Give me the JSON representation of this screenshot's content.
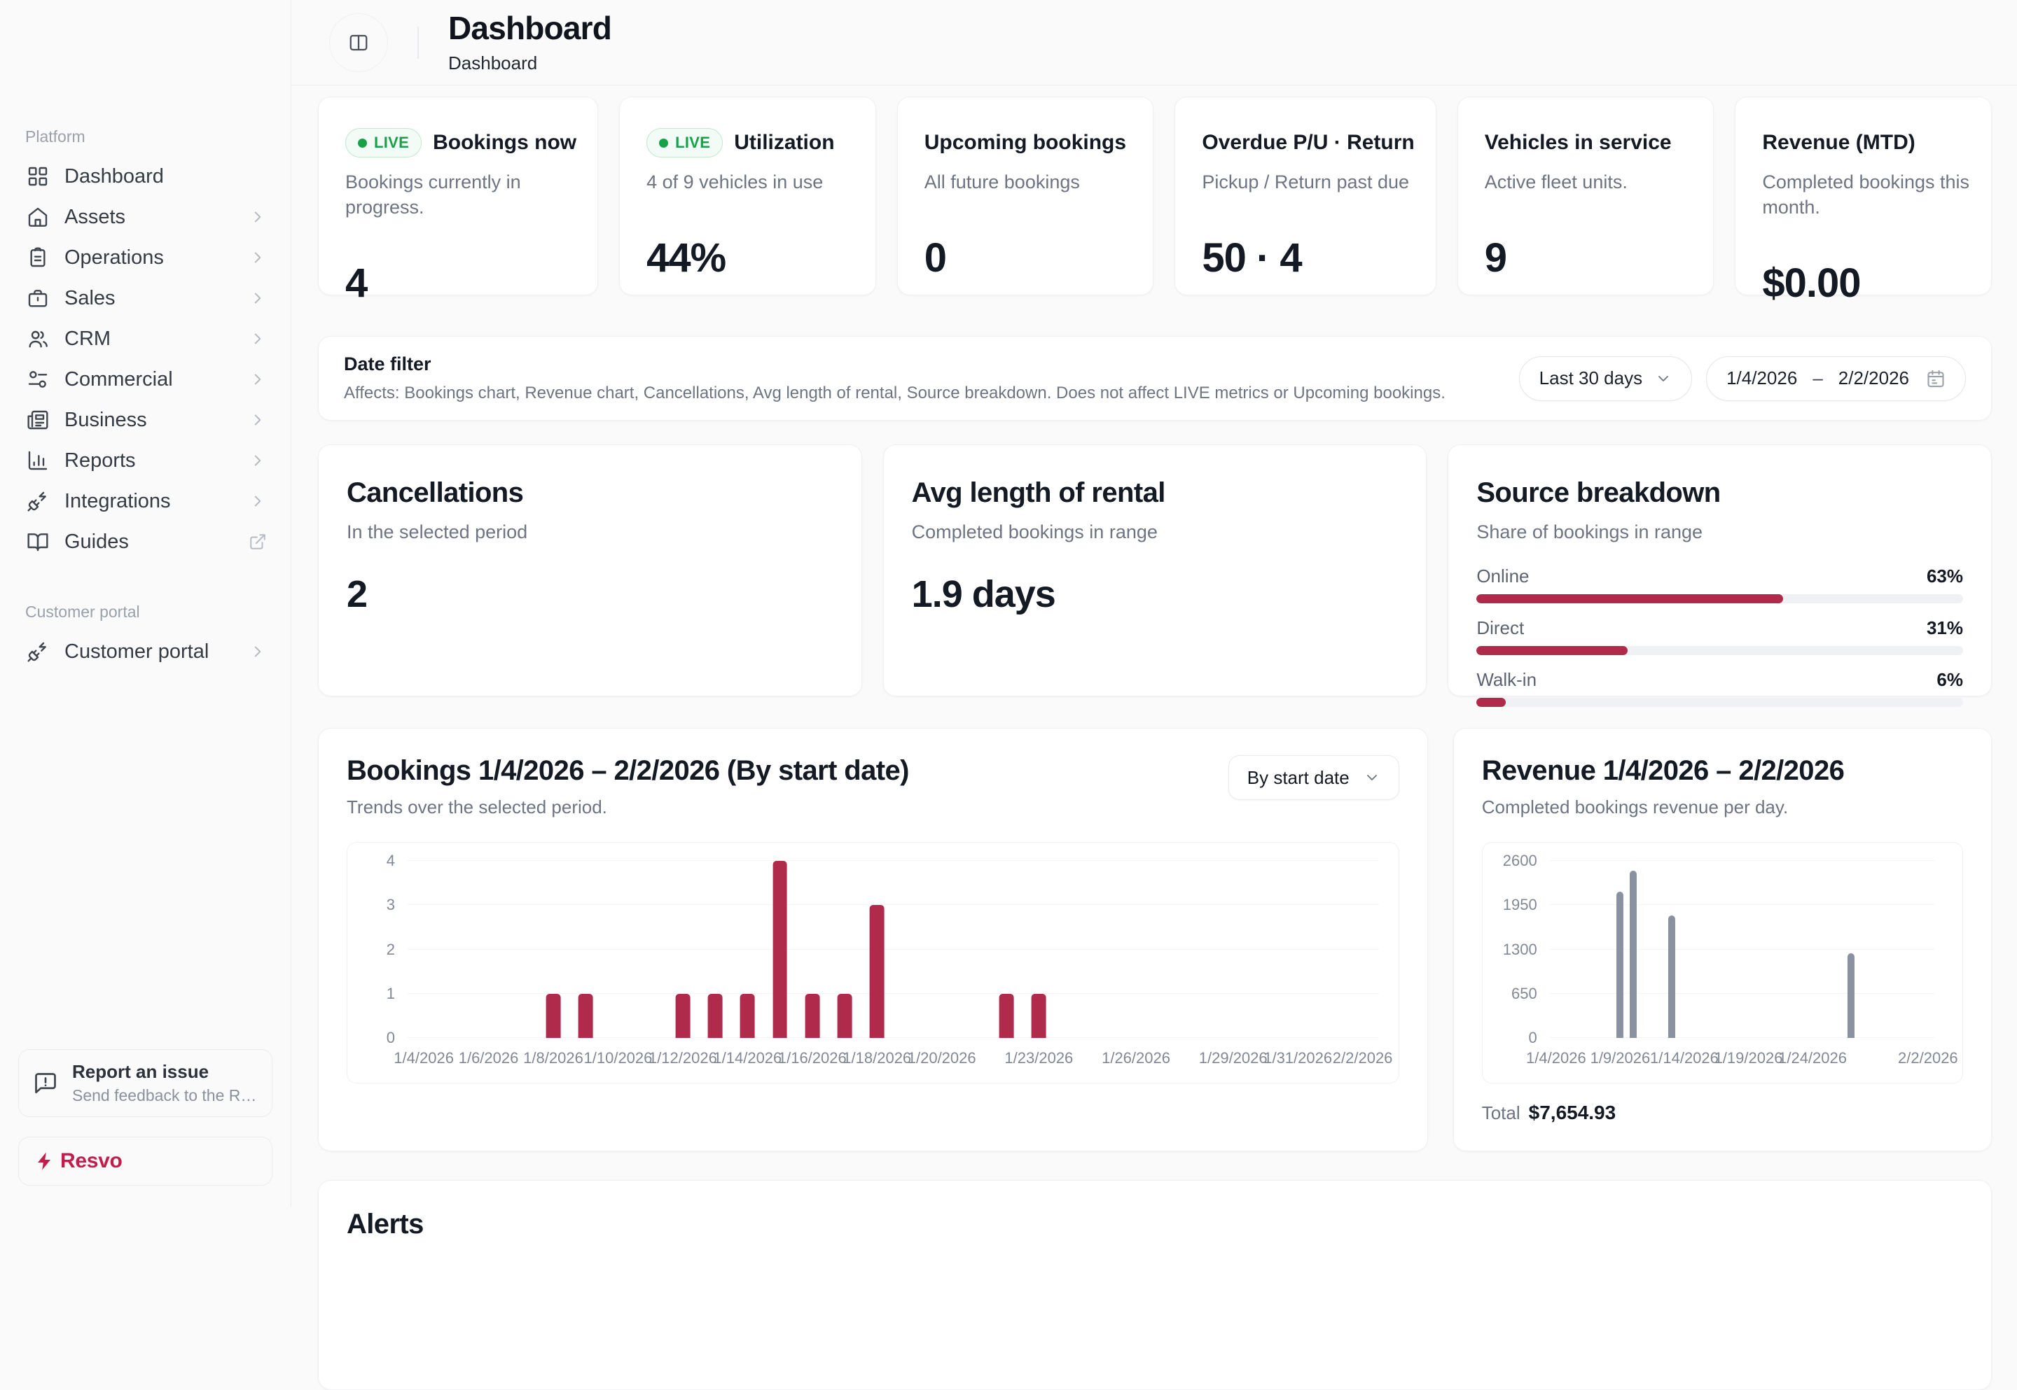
{
  "sidebar": {
    "platform_label": "Platform",
    "items": [
      {
        "label": "Dashboard",
        "icon": "layout-grid",
        "trailing": ""
      },
      {
        "label": "Assets",
        "icon": "house",
        "trailing": "chevron"
      },
      {
        "label": "Operations",
        "icon": "clipboard-list",
        "trailing": "chevron"
      },
      {
        "label": "Sales",
        "icon": "briefcase",
        "trailing": "chevron"
      },
      {
        "label": "CRM",
        "icon": "users",
        "trailing": "chevron"
      },
      {
        "label": "Commercial",
        "icon": "sliders",
        "trailing": "chevron"
      },
      {
        "label": "Business",
        "icon": "newspaper",
        "trailing": "chevron"
      },
      {
        "label": "Reports",
        "icon": "chart-column",
        "trailing": "chevron"
      },
      {
        "label": "Integrations",
        "icon": "plug-zap",
        "trailing": "chevron"
      },
      {
        "label": "Guides",
        "icon": "book-open",
        "trailing": "external"
      }
    ],
    "customer_portal_label": "Customer portal",
    "customer_portal_item": {
      "label": "Customer portal",
      "icon": "plug-zap",
      "trailing": "chevron"
    },
    "report_issue": {
      "title": "Report an issue",
      "subtitle": "Send feedback to the Resvo…"
    },
    "brand": "Resvo"
  },
  "header": {
    "title": "Dashboard",
    "breadcrumb": "Dashboard"
  },
  "kpis": [
    {
      "live": true,
      "live_label": "LIVE",
      "title": "Bookings now",
      "subtitle": "Bookings currently in progress.",
      "value": "4"
    },
    {
      "live": true,
      "live_label": "LIVE",
      "title": "Utilization",
      "subtitle": "4 of 9 vehicles in use",
      "value": "44%"
    },
    {
      "live": false,
      "live_label": "",
      "title": "Upcoming bookings",
      "subtitle": "All future bookings",
      "value": "0"
    },
    {
      "live": false,
      "live_label": "",
      "title": "Overdue P/U · Return",
      "subtitle": "Pickup / Return past due",
      "value": "50 · 4"
    },
    {
      "live": false,
      "live_label": "",
      "title": "Vehicles in service",
      "subtitle": "Active fleet units.",
      "value": "9"
    },
    {
      "live": false,
      "live_label": "",
      "title": "Revenue (MTD)",
      "subtitle": "Completed bookings this month.",
      "value": "$0.00"
    }
  ],
  "date_filter": {
    "title": "Date filter",
    "description": "Affects: Bookings chart, Revenue chart, Cancellations, Avg length of rental, Source breakdown. Does not affect LIVE metrics or Upcoming bookings.",
    "preset": "Last 30 days",
    "start": "1/4/2026",
    "range_separator": "–",
    "end": "2/2/2026"
  },
  "stats": {
    "cancellations": {
      "title": "Cancellations",
      "subtitle": "In the selected period",
      "value": "2"
    },
    "avg_length": {
      "title": "Avg length of rental",
      "subtitle": "Completed bookings in range",
      "value": "1.9 days"
    },
    "source_breakdown": {
      "title": "Source breakdown",
      "subtitle": "Share of bookings in range",
      "rows": [
        {
          "label": "Online",
          "pct": 63,
          "pct_label": "63%"
        },
        {
          "label": "Direct",
          "pct": 31,
          "pct_label": "31%"
        },
        {
          "label": "Walk-in",
          "pct": 6,
          "pct_label": "6%"
        }
      ]
    }
  },
  "bookings_chart": {
    "title": "Bookings 1/4/2026 – 2/2/2026 (By start date)",
    "subtitle": "Trends over the selected period.",
    "dropdown": "By start date"
  },
  "revenue_chart": {
    "title": "Revenue 1/4/2026 – 2/2/2026",
    "subtitle": "Completed bookings revenue per day.",
    "total_label": "Total",
    "total_value": "$7,654.93"
  },
  "alerts": {
    "title": "Alerts"
  },
  "colors": {
    "accent_crimson": "#b02a4c",
    "brand_crimson": "#c21e4c",
    "revenue_bar_gray": "#8a92a2",
    "live_green": "#17a24a"
  },
  "chart_data": [
    {
      "name": "bookings_by_day",
      "type": "bar",
      "title": "Bookings 1/4/2026 – 2/2/2026 (By start date)",
      "xlabel": "date",
      "ylabel": "bookings",
      "ylim": [
        0,
        4
      ],
      "yticks": [
        0,
        1,
        2,
        3,
        4
      ],
      "grid": true,
      "bar_color": "#b02a4c",
      "bar_frac": 0.45,
      "x": [
        "1/4/2026",
        "1/5/2026",
        "1/6/2026",
        "1/7/2026",
        "1/8/2026",
        "1/9/2026",
        "1/10/2026",
        "1/11/2026",
        "1/12/2026",
        "1/13/2026",
        "1/14/2026",
        "1/15/2026",
        "1/16/2026",
        "1/17/2026",
        "1/18/2026",
        "1/19/2026",
        "1/20/2026",
        "1/21/2026",
        "1/22/2026",
        "1/23/2026",
        "1/24/2026",
        "1/25/2026",
        "1/26/2026",
        "1/27/2026",
        "1/28/2026",
        "1/29/2026",
        "1/30/2026",
        "1/31/2026",
        "2/1/2026",
        "2/2/2026"
      ],
      "values": [
        0,
        0,
        0,
        0,
        1,
        1,
        0,
        0,
        1,
        1,
        1,
        4,
        1,
        1,
        3,
        0,
        0,
        0,
        1,
        1,
        0,
        0,
        0,
        0,
        0,
        0,
        0,
        0,
        0,
        0
      ],
      "x_tick_labels": [
        "1/4/2026",
        "1/6/2026",
        "1/8/2026",
        "1/10/2026",
        "1/12/2026",
        "1/14/2026",
        "1/16/2026",
        "1/18/2026",
        "1/20/2026",
        "1/23/2026",
        "1/26/2026",
        "1/29/2026",
        "1/31/2026",
        "2/2/2026"
      ]
    },
    {
      "name": "revenue_per_day",
      "type": "bar",
      "title": "Revenue 1/4/2026 – 2/2/2026",
      "xlabel": "date",
      "ylabel": "revenue_usd",
      "ylim": [
        0,
        2600
      ],
      "yticks": [
        0,
        650,
        1300,
        1950,
        2600
      ],
      "grid": true,
      "bar_color": "#8a92a2",
      "bar_frac": 0.55,
      "x": [
        "1/4/2026",
        "1/5/2026",
        "1/6/2026",
        "1/7/2026",
        "1/8/2026",
        "1/9/2026",
        "1/10/2026",
        "1/11/2026",
        "1/12/2026",
        "1/13/2026",
        "1/14/2026",
        "1/15/2026",
        "1/16/2026",
        "1/17/2026",
        "1/18/2026",
        "1/19/2026",
        "1/20/2026",
        "1/21/2026",
        "1/22/2026",
        "1/23/2026",
        "1/24/2026",
        "1/25/2026",
        "1/26/2026",
        "1/27/2026",
        "1/28/2026",
        "1/29/2026",
        "1/30/2026",
        "1/31/2026",
        "2/1/2026",
        "2/2/2026"
      ],
      "values": [
        0,
        0,
        0,
        0,
        0,
        2150,
        2460,
        0,
        0,
        1800,
        0,
        0,
        0,
        0,
        0,
        0,
        0,
        0,
        0,
        0,
        0,
        0,
        0,
        1244.93,
        0,
        0,
        0,
        0,
        0,
        0
      ],
      "x_tick_labels": [
        "1/4/2026",
        "1/9/2026",
        "1/14/2026",
        "1/19/2026",
        "1/24/2026",
        "2/2/2026"
      ],
      "total": 7654.93
    }
  ]
}
